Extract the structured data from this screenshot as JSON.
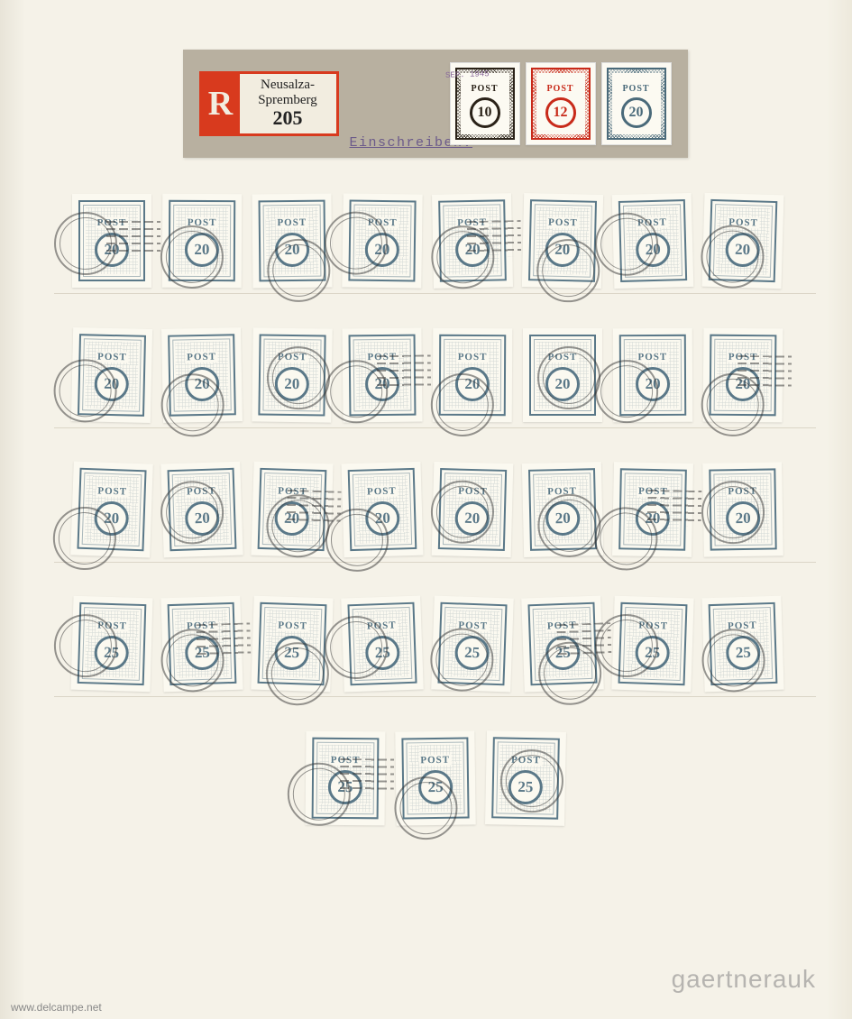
{
  "cover": {
    "registration": {
      "letter": "R",
      "town": "Neusalza-\nSpremberg",
      "number": "205"
    },
    "einschreiben": "Einschreiben.",
    "overprint_date": "SEP. 1945",
    "stamps": [
      {
        "post": "POST",
        "value": "10",
        "color": "#2a2218"
      },
      {
        "post": "POST",
        "value": "12",
        "color": "#c82a1a"
      },
      {
        "post": "POST",
        "value": "20",
        "color": "#4a6a7a"
      }
    ]
  },
  "stamp_color_blue": "#5a7888",
  "stamp_post_label": "POST",
  "rows": [
    {
      "count": 8,
      "value": "20"
    },
    {
      "count": 8,
      "value": "20"
    },
    {
      "count": 8,
      "value": "20"
    },
    {
      "count": 8,
      "value": "25"
    },
    {
      "count": 3,
      "value": "25",
      "short": true
    }
  ],
  "watermark": "gaertnerauk",
  "footer": "www.delcampe.net"
}
